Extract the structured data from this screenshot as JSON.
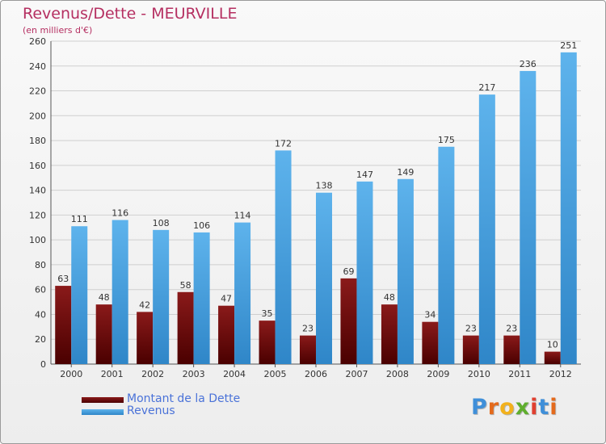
{
  "title": "Revenus/Dette - MEURVILLE",
  "subtitle": "(en milliers d'€)",
  "colors": {
    "title": "#b52f61",
    "dette_top": "#8a1a1a",
    "dette_bottom": "#4a0000",
    "revenus_top": "#5eb3ec",
    "revenus_bottom": "#2f86c8",
    "legend_text": "#4a72d8"
  },
  "chart_data": {
    "type": "bar",
    "categories": [
      "2000",
      "2001",
      "2002",
      "2003",
      "2004",
      "2005",
      "2006",
      "2007",
      "2008",
      "2009",
      "2010",
      "2011",
      "2012"
    ],
    "series": [
      {
        "name": "Montant de la Dette",
        "values": [
          63,
          48,
          42,
          58,
          47,
          35,
          23,
          69,
          48,
          34,
          23,
          23,
          10
        ]
      },
      {
        "name": "Revenus",
        "values": [
          111,
          116,
          108,
          106,
          114,
          172,
          138,
          147,
          149,
          175,
          217,
          236,
          251
        ]
      }
    ],
    "ylim": [
      0,
      260
    ],
    "yticks": [
      0,
      20,
      40,
      60,
      80,
      100,
      120,
      140,
      160,
      180,
      200,
      220,
      240,
      260
    ],
    "grid": true,
    "legend_position": "bottom-left"
  },
  "legend": [
    {
      "label": "Montant de la Dette",
      "icon": "dark-red-bar-swatch"
    },
    {
      "label": "Revenus",
      "icon": "blue-bar-swatch"
    }
  ],
  "logo": {
    "letters": [
      "P",
      "r",
      "o",
      "x",
      "i",
      "t",
      "i"
    ],
    "colors": [
      "#3f8fd9",
      "#e46a1c",
      "#f2b11c",
      "#5fae2e",
      "#e04030",
      "#3f8fd9",
      "#e46a1c"
    ]
  }
}
